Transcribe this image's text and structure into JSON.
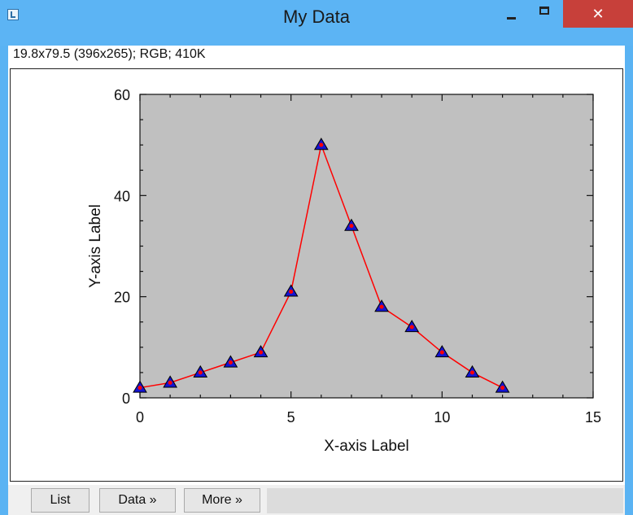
{
  "window": {
    "title": "My Data",
    "close_glyph": "✕",
    "info_text": "19.8x79.5    (396x265); RGB; 410K"
  },
  "buttons": {
    "list": "List",
    "data": "Data »",
    "more": "More »"
  },
  "colors": {
    "plot_background": "#c0c0c0",
    "line": "#ff0000",
    "marker": "#1414d2",
    "titlebar": "#5cb4f4",
    "close_button": "#c7403a"
  },
  "chart_data": {
    "type": "line",
    "xlabel": "X-axis Label",
    "ylabel": "Y-axis Label",
    "xlim": [
      0,
      15
    ],
    "ylim": [
      0,
      60
    ],
    "xticks": [
      0,
      5,
      10,
      15
    ],
    "yticks": [
      0,
      20,
      40,
      60
    ],
    "marker": "triangle",
    "series": [
      {
        "x": [
          0,
          1,
          2,
          3,
          4,
          5,
          6,
          7,
          8,
          9,
          10,
          11,
          12
        ],
        "y": [
          2,
          3,
          5,
          7,
          9,
          21,
          50,
          34,
          18,
          14,
          9,
          5,
          2
        ]
      }
    ]
  }
}
